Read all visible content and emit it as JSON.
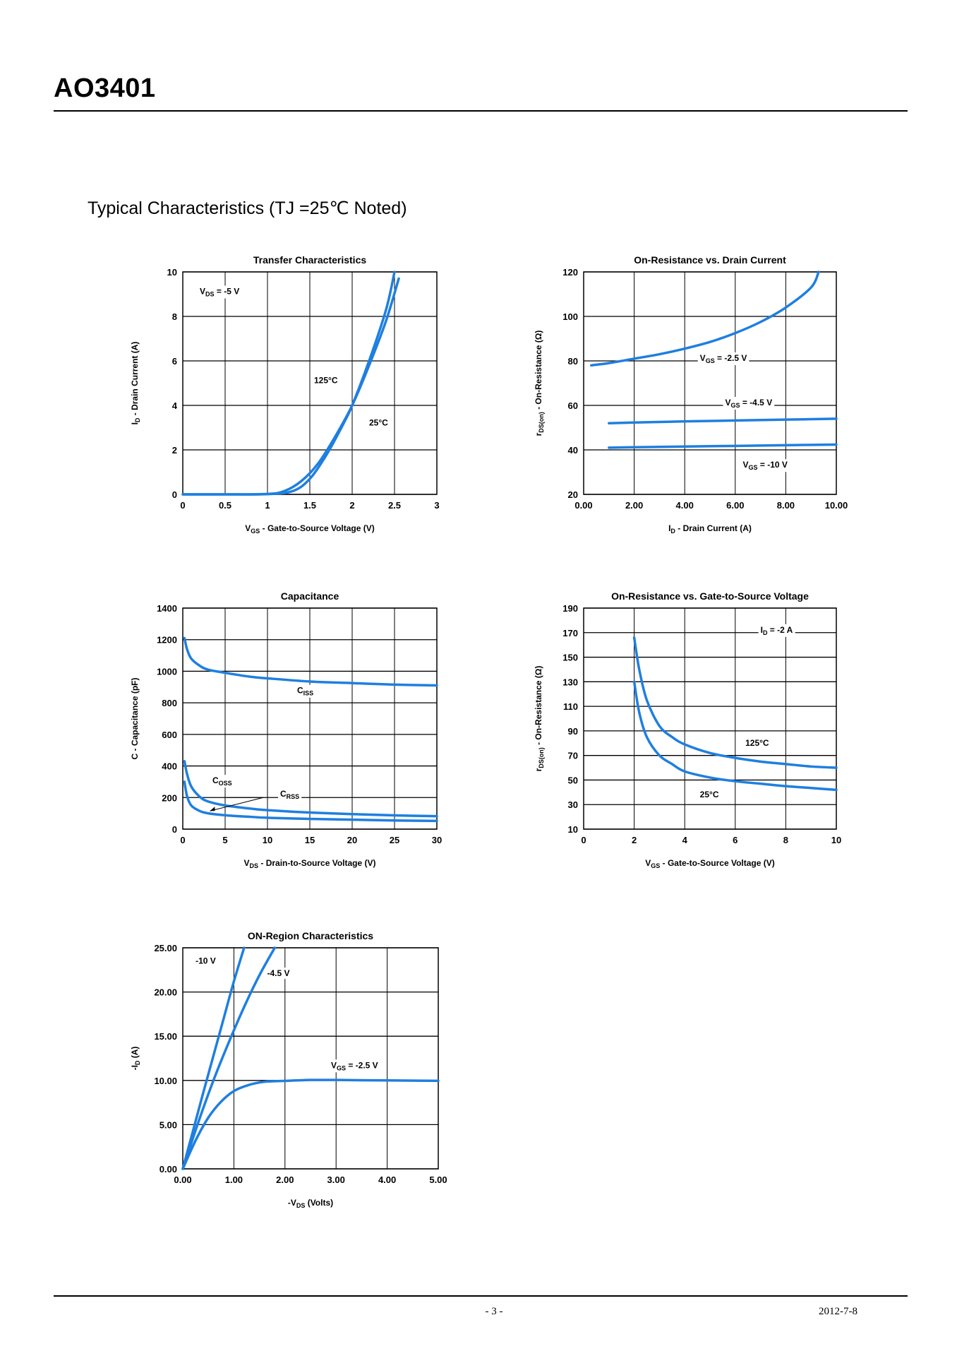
{
  "header": {
    "part_number": "AO3401"
  },
  "section": {
    "title": "Typical Characteristics (TJ =25℃ Noted)"
  },
  "footer": {
    "page": "- 3 -",
    "date": "2012-7-8"
  },
  "style": {
    "curve_color": "#1e7fe0",
    "grid_color": "#000000"
  },
  "chart_data": [
    {
      "type": "line",
      "title": "Transfer Characteristics",
      "xlabel": "V GS - Gate-to-Source Voltage (V)",
      "ylabel": "I D - Drain Current (A)",
      "xlim": [
        0,
        3
      ],
      "ylim": [
        0,
        10
      ],
      "xticks": [
        0,
        0.5,
        1,
        1.5,
        2,
        2.5,
        3
      ],
      "xtick_labels": [
        "0",
        "0.5",
        "1",
        "1.5",
        "2",
        "2.5",
        "3"
      ],
      "yticks": [
        0,
        2,
        4,
        6,
        8,
        10
      ],
      "ytick_labels": [
        "0",
        "2",
        "4",
        "6",
        "8",
        "10"
      ],
      "annotations": [
        {
          "text": "V DS = -5 V",
          "x": 0.2,
          "y": 9.0
        },
        {
          "text": "125°C",
          "x": 1.55,
          "y": 5.0
        },
        {
          "text": "25°C",
          "x": 2.2,
          "y": 3.1
        }
      ],
      "series": [
        {
          "name": "125°C",
          "x": [
            0,
            0.5,
            1.0,
            1.2,
            1.4,
            1.6,
            1.8,
            2.0,
            2.2,
            2.4,
            2.55
          ],
          "y": [
            0,
            0,
            0.02,
            0.15,
            0.6,
            1.4,
            2.6,
            4.0,
            5.8,
            7.8,
            9.7
          ]
        },
        {
          "name": "25°C",
          "x": [
            0,
            0.5,
            1.0,
            1.3,
            1.5,
            1.7,
            1.9,
            2.0,
            2.2,
            2.4,
            2.5
          ],
          "y": [
            0,
            0,
            0.01,
            0.15,
            0.7,
            1.8,
            3.2,
            4.0,
            6.0,
            8.3,
            10.0
          ]
        }
      ]
    },
    {
      "type": "line",
      "title": "On-Resistance vs. Drain Current",
      "xlabel": "I D - Drain Current (A)",
      "ylabel": "r DS(on) - On-Resistance (Ω)",
      "xlim": [
        0,
        10
      ],
      "ylim": [
        20,
        120
      ],
      "xticks": [
        0,
        2,
        4,
        6,
        8,
        10
      ],
      "xtick_labels": [
        "0.00",
        "2.00",
        "4.00",
        "6.00",
        "8.00",
        "10.00"
      ],
      "yticks": [
        20,
        40,
        60,
        80,
        100,
        120
      ],
      "ytick_labels": [
        "20",
        "40",
        "60",
        "80",
        "100",
        "120"
      ],
      "annotations": [
        {
          "text": "V GS = -2.5 V",
          "x": 4.6,
          "y": 80
        },
        {
          "text": "V GS = -4.5 V",
          "x": 5.6,
          "y": 60
        },
        {
          "text": "V GS = -10 V",
          "x": 6.3,
          "y": 32
        }
      ],
      "series": [
        {
          "name": "VGS = -2.5 V",
          "x": [
            0.3,
            1,
            2,
            3,
            4,
            5,
            6,
            7,
            8,
            9,
            9.3
          ],
          "y": [
            78,
            79,
            81,
            83,
            85.5,
            88.5,
            92.5,
            97.5,
            104,
            113,
            120
          ]
        },
        {
          "name": "VGS = -4.5 V",
          "x": [
            1,
            2,
            4,
            6,
            8,
            10
          ],
          "y": [
            52,
            52.3,
            52.8,
            53.2,
            53.6,
            54
          ]
        },
        {
          "name": "VGS = -10 V",
          "x": [
            1,
            2,
            4,
            6,
            8,
            10
          ],
          "y": [
            41,
            41.2,
            41.5,
            41.8,
            42.1,
            42.4
          ]
        }
      ]
    },
    {
      "type": "line",
      "title": "Capacitance",
      "xlabel": "V DS - Drain-to-Source Voltage (V)",
      "ylabel": "C - Capacitance (pF)",
      "xlim": [
        0,
        30
      ],
      "ylim": [
        0,
        1400
      ],
      "xticks": [
        0,
        5,
        10,
        15,
        20,
        25,
        30
      ],
      "xtick_labels": [
        "0",
        "5",
        "10",
        "15",
        "20",
        "25",
        "30"
      ],
      "yticks": [
        0,
        200,
        400,
        600,
        800,
        1000,
        1200,
        1400
      ],
      "ytick_labels": [
        "0",
        "200",
        "400",
        "600",
        "800",
        "1000",
        "1200",
        "1400"
      ],
      "annotations": [
        {
          "text": "C ISS",
          "x": 13.5,
          "y": 860
        },
        {
          "text": "C OSS",
          "x": 3.5,
          "y": 290
        },
        {
          "text": "C RSS",
          "x": 11.5,
          "y": 205
        }
      ],
      "series": [
        {
          "name": "Ciss",
          "x": [
            0.2,
            0.5,
            1,
            2,
            3,
            5,
            8,
            10,
            15,
            20,
            25,
            30
          ],
          "y": [
            1210,
            1140,
            1080,
            1035,
            1010,
            990,
            965,
            955,
            935,
            925,
            915,
            910
          ]
        },
        {
          "name": "Coss",
          "x": [
            0.2,
            0.5,
            1,
            2,
            3,
            5,
            8,
            10,
            15,
            20,
            25,
            30
          ],
          "y": [
            430,
            350,
            270,
            205,
            175,
            150,
            130,
            120,
            105,
            95,
            87,
            82
          ]
        },
        {
          "name": "Crss",
          "x": [
            0.2,
            0.5,
            1,
            2,
            3,
            5,
            8,
            10,
            15,
            20,
            25,
            30
          ],
          "y": [
            300,
            210,
            150,
            115,
            100,
            88,
            78,
            72,
            65,
            60,
            55,
            52
          ]
        }
      ]
    },
    {
      "type": "line",
      "title": "On-Resistance vs. Gate-to-Source Voltage",
      "xlabel": "V GS - Gate-to-Source Voltage (V)",
      "ylabel": "r DS(on) - On-Resistance (Ω)",
      "xlim": [
        0,
        10
      ],
      "ylim": [
        10,
        190
      ],
      "xticks": [
        0,
        2,
        4,
        6,
        8,
        10
      ],
      "xtick_labels": [
        "0",
        "2",
        "4",
        "6",
        "8",
        "10"
      ],
      "yticks": [
        10,
        30,
        50,
        70,
        90,
        110,
        130,
        150,
        170,
        190
      ],
      "ytick_labels": [
        "10",
        "30",
        "50",
        "70",
        "90",
        "110",
        "130",
        "150",
        "170",
        "190"
      ],
      "annotations": [
        {
          "text": "I D = -2 A",
          "x": 7.0,
          "y": 170
        },
        {
          "text": "125°C",
          "x": 6.4,
          "y": 78
        },
        {
          "text": "25°C",
          "x": 4.6,
          "y": 36
        }
      ],
      "series": [
        {
          "name": "125°C",
          "x": [
            2.0,
            2.2,
            2.5,
            3.0,
            3.5,
            4,
            5,
            6,
            7,
            8,
            9,
            10
          ],
          "y": [
            166,
            140,
            115,
            94,
            85,
            79,
            72,
            68,
            65,
            63,
            61,
            60
          ]
        },
        {
          "name": "25°C",
          "x": [
            2.0,
            2.2,
            2.5,
            3.0,
            3.5,
            4,
            5,
            6,
            7,
            8,
            9,
            10
          ],
          "y": [
            130,
            105,
            85,
            70,
            63,
            57,
            52,
            49,
            47,
            45,
            43.5,
            42
          ]
        }
      ]
    },
    {
      "type": "line",
      "title": "ON-Region Characteristics",
      "xlabel": "-V DS (Volts)",
      "ylabel": "-I D (A)",
      "xlim": [
        0,
        5
      ],
      "ylim": [
        0,
        25
      ],
      "xticks": [
        0,
        1,
        2,
        3,
        4,
        5
      ],
      "xtick_labels": [
        "0.00",
        "1.00",
        "2.00",
        "3.00",
        "4.00",
        "5.00"
      ],
      "yticks": [
        0,
        5,
        10,
        15,
        20,
        25
      ],
      "ytick_labels": [
        "0.00",
        "5.00",
        "10.00",
        "15.00",
        "20.00",
        "25.00"
      ],
      "annotations": [
        {
          "text": "-10 V",
          "x": 0.25,
          "y": 23.2
        },
        {
          "text": "-4.5 V",
          "x": 1.65,
          "y": 21.8
        },
        {
          "text": "V GS = -2.5 V",
          "x": 2.9,
          "y": 11.4
        }
      ],
      "series": [
        {
          "name": "-10 V",
          "x": [
            0,
            0.2,
            0.4,
            0.6,
            0.8,
            1.0,
            1.2
          ],
          "y": [
            0,
            4.3,
            8.6,
            12.8,
            17.0,
            21.2,
            25
          ]
        },
        {
          "name": "-4.5 V",
          "x": [
            0,
            0.3,
            0.6,
            0.9,
            1.2,
            1.5,
            1.8
          ],
          "y": [
            0,
            5.2,
            10.0,
            14.3,
            18.3,
            21.9,
            25
          ]
        },
        {
          "name": "VGS = -2.5 V",
          "x": [
            0,
            0.25,
            0.5,
            0.75,
            1.0,
            1.3,
            1.6,
            2.0,
            2.5,
            3.0,
            4.0,
            5.0
          ],
          "y": [
            0,
            3.2,
            5.8,
            7.6,
            8.8,
            9.5,
            9.85,
            9.95,
            10.05,
            10.05,
            10.0,
            9.95
          ]
        }
      ]
    }
  ]
}
